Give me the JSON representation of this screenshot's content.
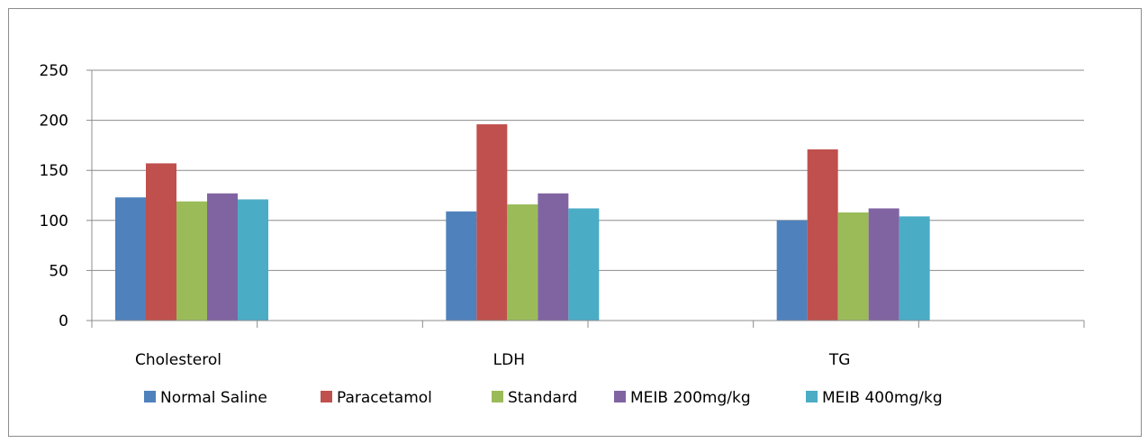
{
  "chart_data": {
    "type": "bar",
    "title": "",
    "xlabel": "",
    "ylabel": "",
    "categories": [
      "Cholesterol",
      "LDH",
      "TG"
    ],
    "ylim": [
      0,
      250
    ],
    "yticks": [
      0,
      50,
      100,
      150,
      200,
      250
    ],
    "grid": true,
    "legend_position": "bottom",
    "series": [
      {
        "name": "Normal Saline",
        "color": "#4f81bd",
        "values": [
          123,
          109,
          100
        ]
      },
      {
        "name": "Paracetamol",
        "color": "#c0504d",
        "values": [
          157,
          196,
          171
        ]
      },
      {
        "name": "Standard",
        "color": "#9bbb59",
        "values": [
          119,
          116,
          108
        ]
      },
      {
        "name": "MEIB 200mg/kg",
        "color": "#8064a2",
        "values": [
          127,
          127,
          112
        ]
      },
      {
        "name": "MEIB 400mg/kg",
        "color": "#4bacc6",
        "values": [
          121,
          112,
          104
        ]
      }
    ]
  }
}
